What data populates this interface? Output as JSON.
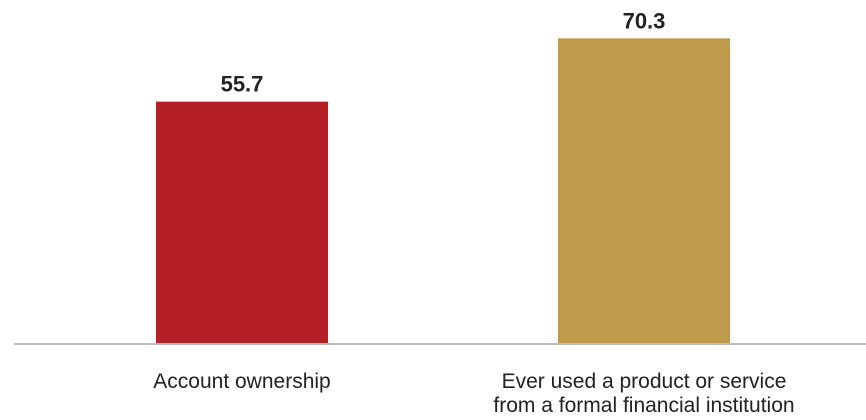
{
  "chart_data": {
    "type": "bar",
    "categories": [
      [
        "Account ownership"
      ],
      [
        "Ever used a product or service",
        "from a formal financial institution"
      ]
    ],
    "values": [
      55.7,
      70.3
    ],
    "value_labels": [
      "55.7",
      "70.3"
    ],
    "colors": [
      "#B52026",
      "#BF9A4B"
    ],
    "ylim": [
      0,
      72
    ],
    "grid": false,
    "axis_color": "#BDBDBD",
    "title": "",
    "xlabel": "",
    "ylabel": ""
  }
}
